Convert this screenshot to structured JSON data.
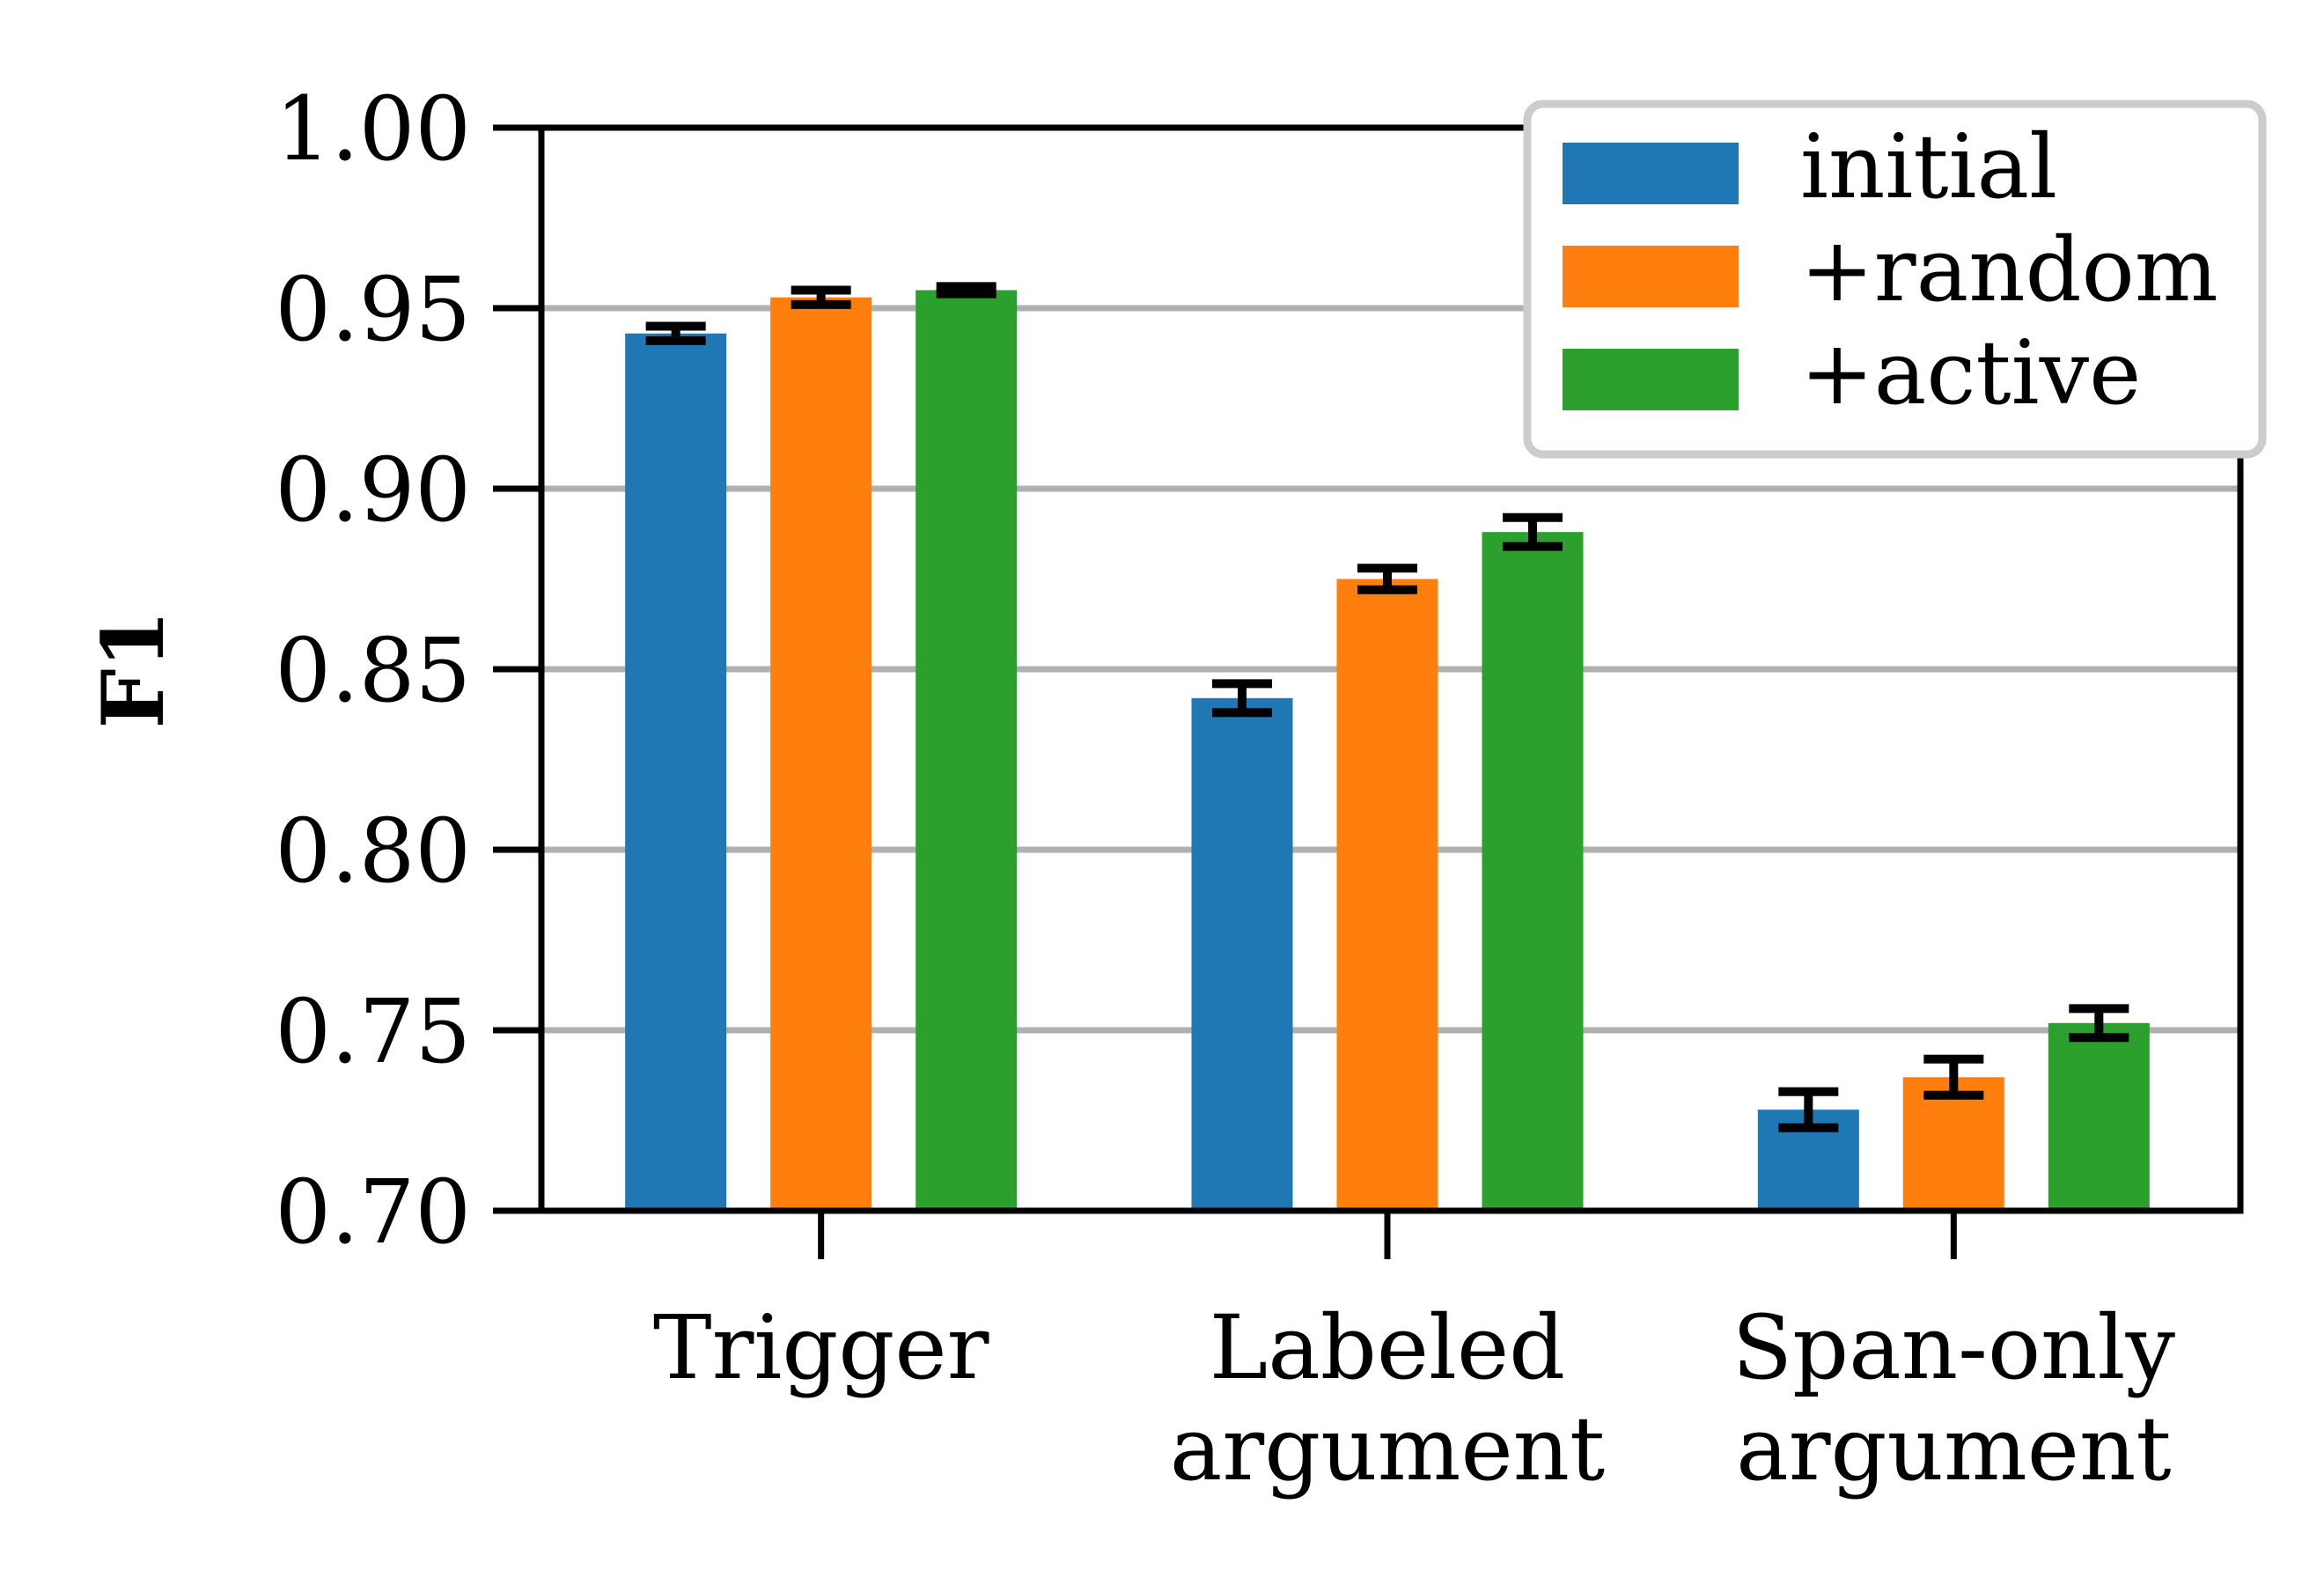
{
  "chart_data": {
    "type": "bar",
    "title": "",
    "xlabel": "",
    "ylabel": "F1",
    "ylim": [
      0.7,
      1.0
    ],
    "yticks": [
      "0.70",
      "0.75",
      "0.80",
      "0.85",
      "0.90",
      "0.95",
      "1.00"
    ],
    "grid": "horizontal",
    "legend_position": "top-right",
    "categories": [
      [
        "Trigger"
      ],
      [
        "Labeled",
        "argument"
      ],
      [
        "Span-only",
        "argument"
      ]
    ],
    "series": [
      {
        "name": "initial",
        "color": "#1f77b4",
        "values": [
          0.943,
          0.842,
          0.728
        ],
        "errors": [
          0.002,
          0.004,
          0.005
        ]
      },
      {
        "name": "+random",
        "color": "#ff7f0e",
        "values": [
          0.953,
          0.875,
          0.737
        ],
        "errors": [
          0.002,
          0.003,
          0.005
        ]
      },
      {
        "name": "+active",
        "color": "#2ca02c",
        "values": [
          0.955,
          0.888,
          0.752
        ],
        "errors": [
          0.001,
          0.004,
          0.004
        ]
      }
    ]
  }
}
